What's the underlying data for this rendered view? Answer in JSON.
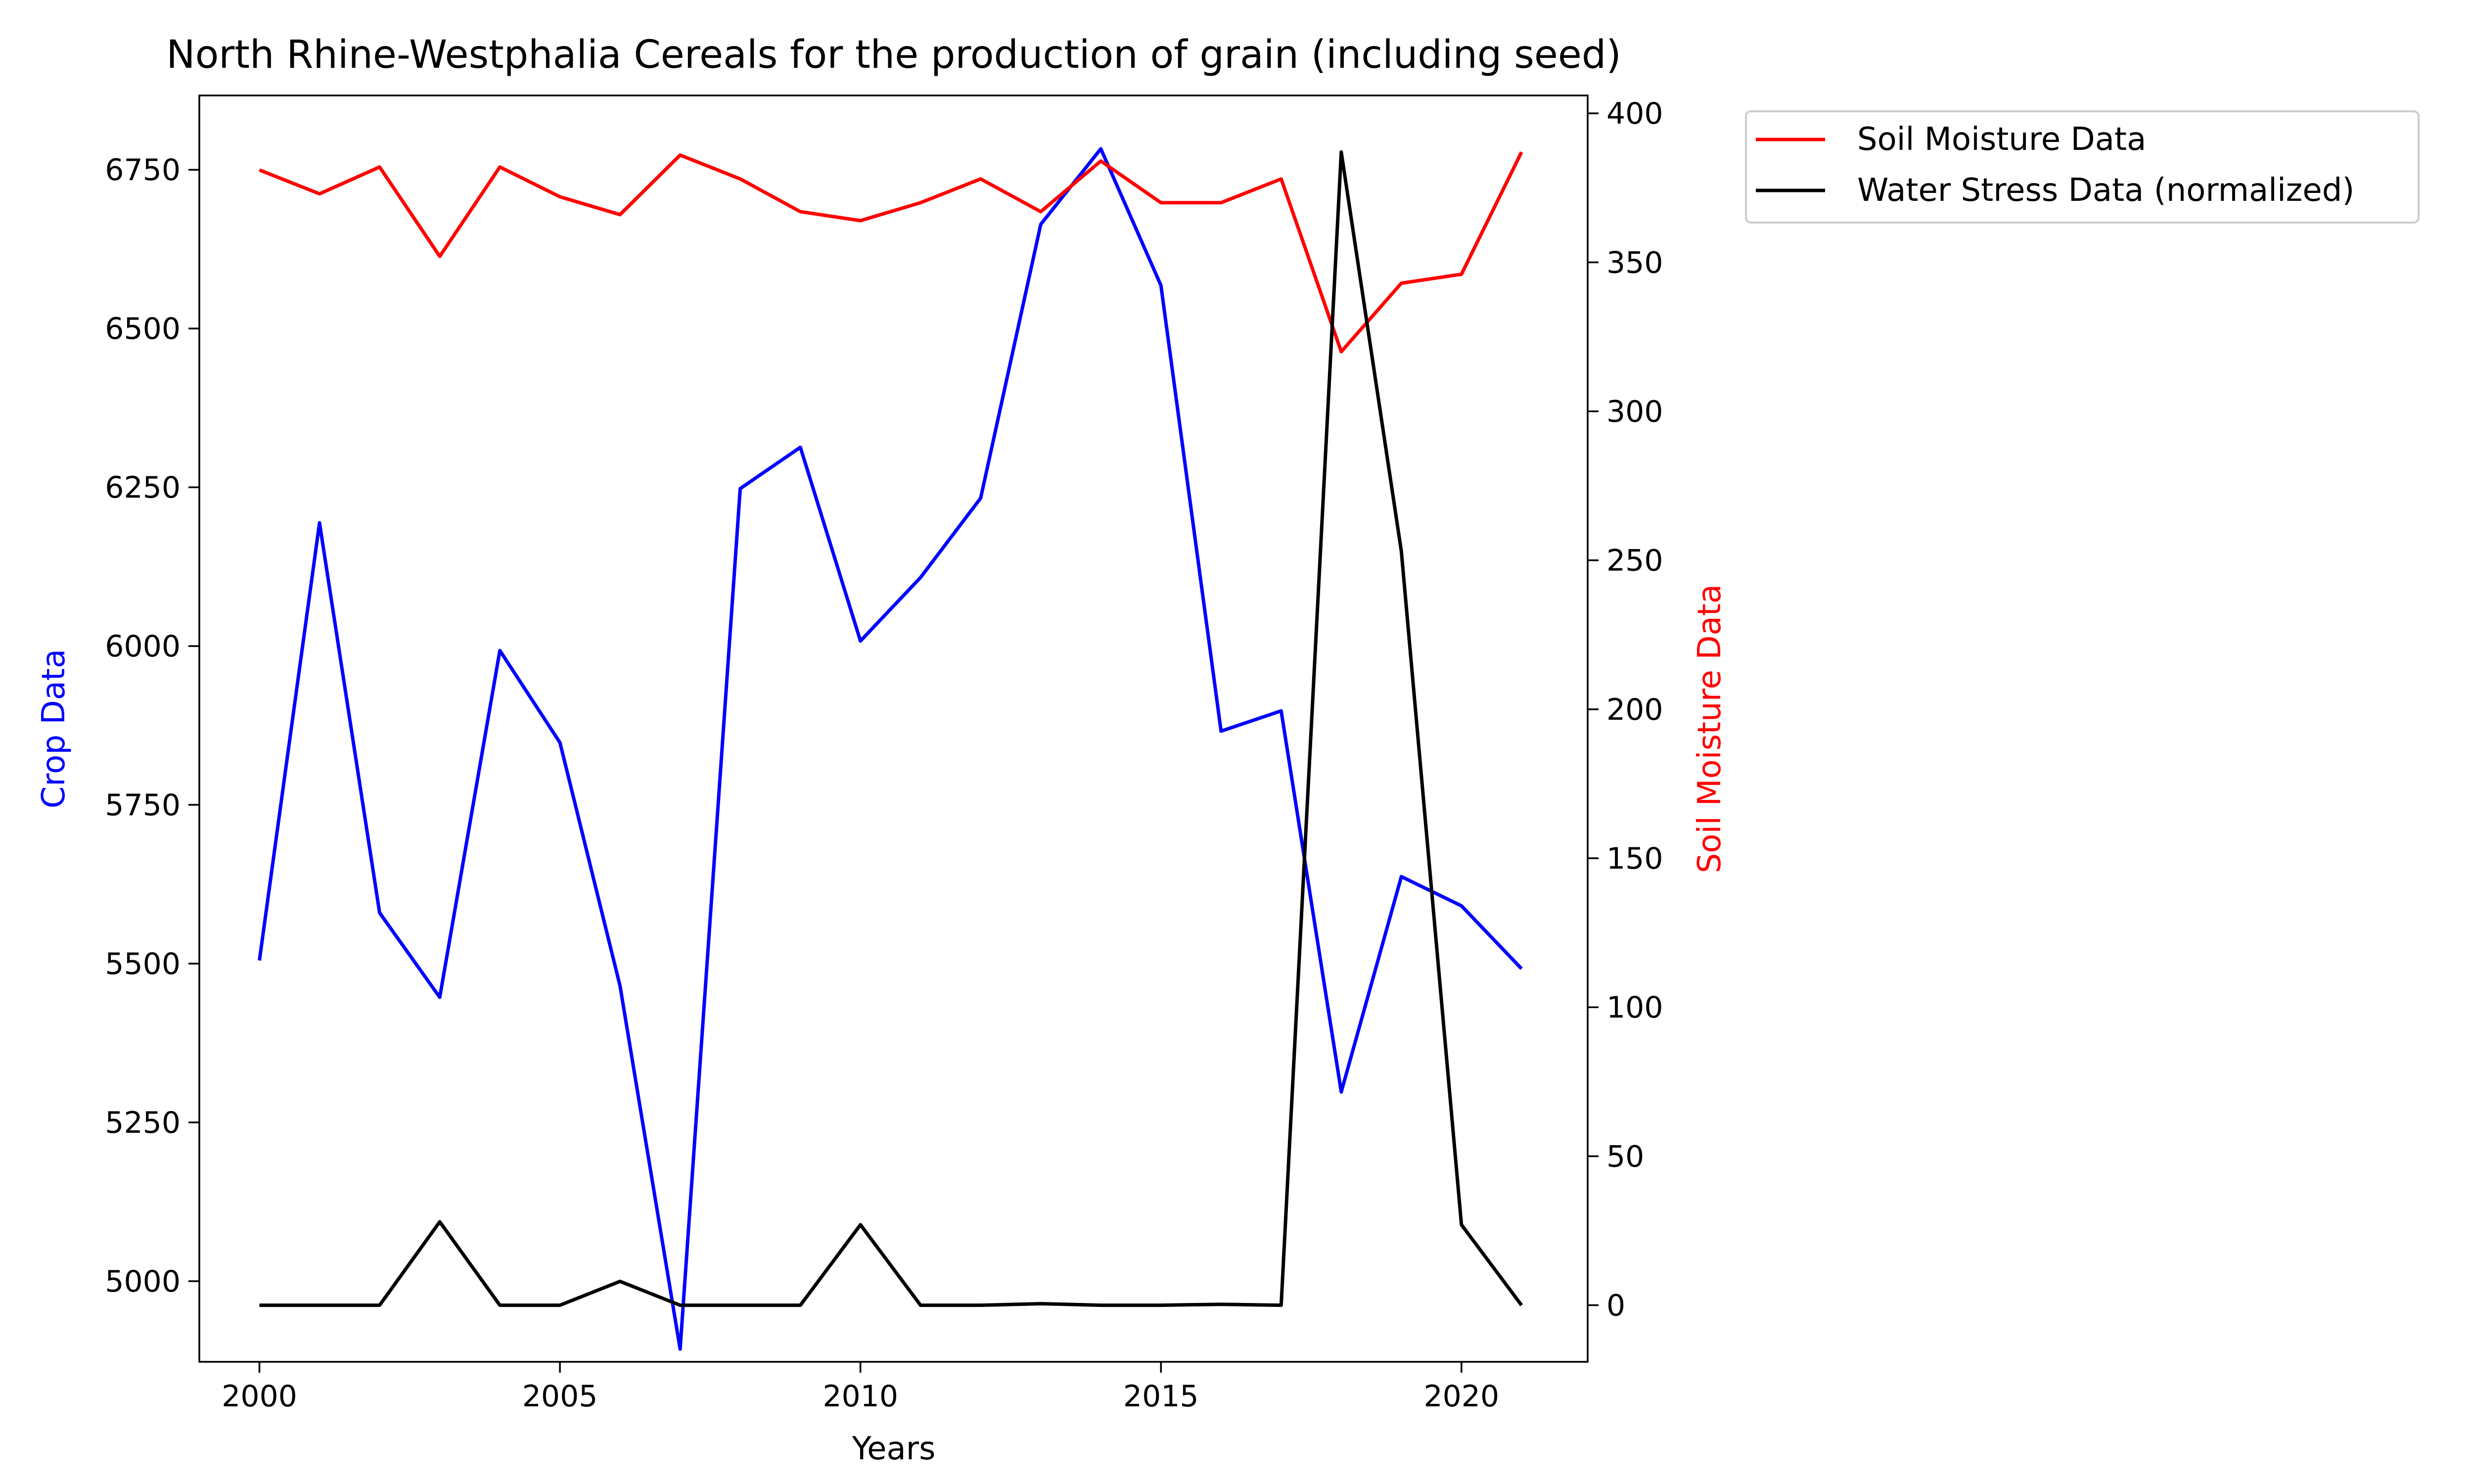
{
  "chart_data": {
    "type": "line",
    "title": "North Rhine-Westphalia Cereals for the production of grain (including seed)",
    "xlabel": "Years",
    "ylabel_left": "Crop Data",
    "ylabel_right": "Soil Moisture Data",
    "x": [
      2000,
      2001,
      2002,
      2003,
      2004,
      2005,
      2006,
      2007,
      2008,
      2009,
      2010,
      2011,
      2012,
      2013,
      2014,
      2015,
      2016,
      2017,
      2018,
      2019,
      2020,
      2021
    ],
    "x_ticks": [
      2000,
      2005,
      2010,
      2015,
      2020
    ],
    "xlim": [
      1999,
      2022.1
    ],
    "ylim_left": [
      4873,
      6867
    ],
    "y_ticks_left": [
      5000,
      5250,
      5500,
      5750,
      6000,
      6250,
      6500,
      6750
    ],
    "ylim_right": [
      -19,
      406
    ],
    "y_ticks_right": [
      0,
      50,
      100,
      150,
      200,
      250,
      300,
      350,
      400
    ],
    "grid": false,
    "legend_placement": "outside upper-right",
    "series": [
      {
        "name": "",
        "axis": "left",
        "color": "#0000ff",
        "values": [
          5505,
          6194,
          5580,
          5447,
          5993,
          5848,
          5465,
          4893,
          6248,
          6313,
          6008,
          6108,
          6233,
          6664,
          6783,
          6568,
          5866,
          5898,
          5298,
          5637,
          5591,
          5492
        ]
      },
      {
        "name": "Soil Moisture Data",
        "axis": "right",
        "color": "#ff0000",
        "values": [
          381,
          373,
          382,
          352,
          382,
          372,
          366,
          386,
          378,
          367,
          364,
          370,
          378,
          367,
          384,
          370,
          370,
          378,
          320,
          343,
          346,
          387
        ]
      },
      {
        "name": "Water Stress Data (normalized)",
        "axis": "right",
        "color": "#000000",
        "values": [
          0,
          0,
          0,
          28,
          0,
          0,
          8,
          0,
          0,
          0,
          27,
          0,
          0,
          0.5,
          0,
          0,
          0.3,
          0,
          387,
          253,
          27,
          0
        ]
      }
    ]
  }
}
